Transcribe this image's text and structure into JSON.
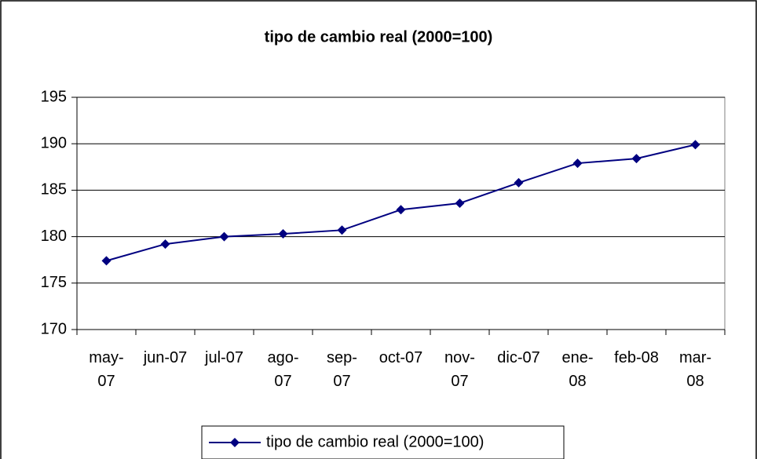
{
  "chart_data": {
    "type": "line",
    "title": "tipo de cambio real (2000=100)",
    "categories": [
      "may-07",
      "jun-07",
      "jul-07",
      "ago-07",
      "sep-07",
      "oct-07",
      "nov-07",
      "dic-07",
      "ene-08",
      "feb-08",
      "mar-08"
    ],
    "series": [
      {
        "name": "tipo de cambio real (2000=100)",
        "color": "#000080",
        "values": [
          177.4,
          179.2,
          180.0,
          180.3,
          180.7,
          182.9,
          183.6,
          185.8,
          187.9,
          188.4,
          189.9
        ]
      }
    ],
    "ylim": [
      170,
      195
    ],
    "yticks": [
      170,
      175,
      180,
      185,
      190,
      195
    ],
    "grid": true,
    "legend": "bottom"
  }
}
